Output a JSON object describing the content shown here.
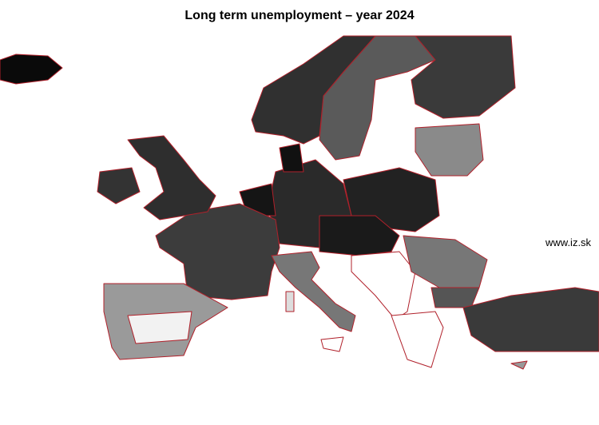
{
  "title": "Long term unemployment – year 2024",
  "watermark": "www.iz.sk",
  "colors": {
    "border": "#b0202a",
    "scale_low": "#ffffff",
    "scale_high": "#000000"
  }
}
